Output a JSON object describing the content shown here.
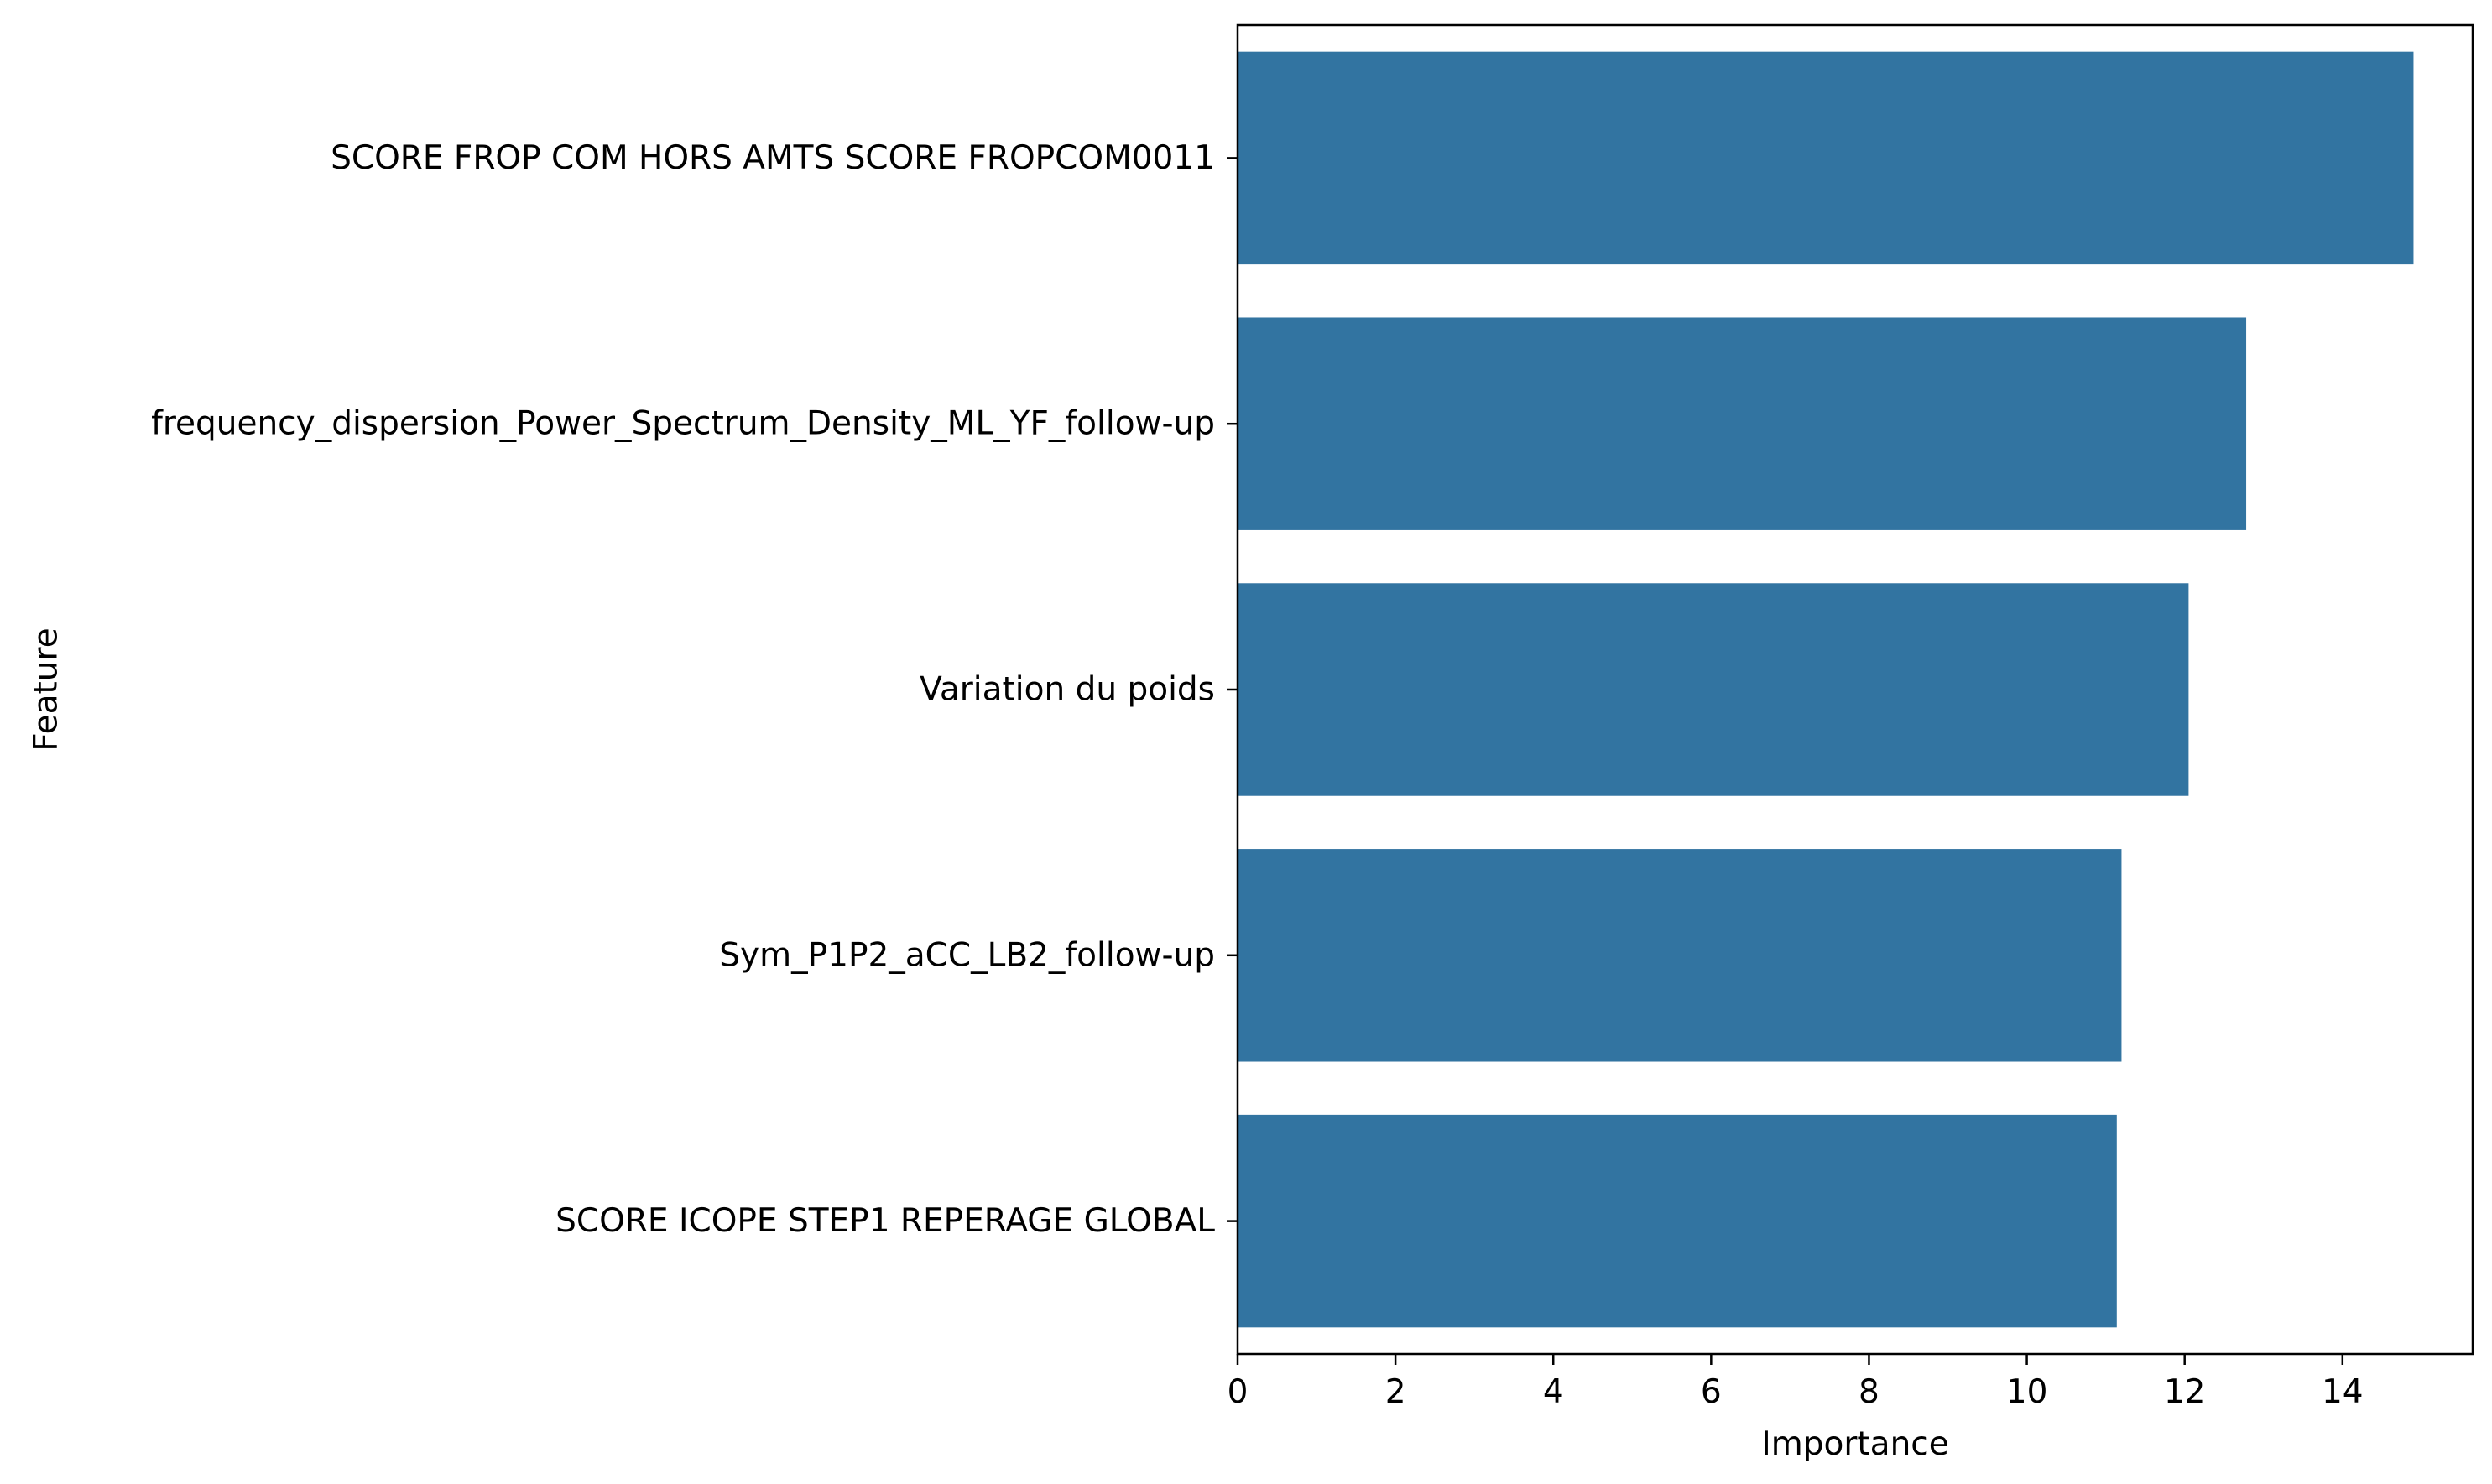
{
  "chart_data": {
    "type": "bar",
    "orientation": "horizontal",
    "categories": [
      "SCORE FROP COM HORS AMTS SCORE FROPCOM0011",
      "frequency_dispersion_Power_Spectrum_Density_ML_YF_follow-up",
      "Variation du poids",
      "Sym_P1P2_aCC_LB2_follow-up",
      "SCORE ICOPE STEP1 REPERAGE GLOBAL"
    ],
    "values": [
      14.9,
      12.78,
      12.05,
      11.2,
      11.14
    ],
    "xlabel": "Importance",
    "ylabel": "Feature",
    "xlim": [
      0,
      15.65
    ],
    "xticks": [
      0,
      2,
      4,
      6,
      8,
      10,
      12,
      14
    ],
    "xtick_labels": [
      "0",
      "2",
      "4",
      "6",
      "8",
      "10",
      "12",
      "14"
    ],
    "grid": false,
    "legend": "none",
    "bar_color": "#3274a1"
  }
}
